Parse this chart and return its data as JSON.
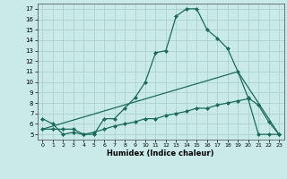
{
  "xlabel": "Humidex (Indice chaleur)",
  "background_color": "#caeaea",
  "grid_color": "#aed4d4",
  "line_color": "#1a6b5a",
  "xlim": [
    -0.5,
    23.5
  ],
  "ylim": [
    4.5,
    17.5
  ],
  "xticks": [
    0,
    1,
    2,
    3,
    4,
    5,
    6,
    7,
    8,
    9,
    10,
    11,
    12,
    13,
    14,
    15,
    16,
    17,
    18,
    19,
    20,
    21,
    22,
    23
  ],
  "yticks": [
    5,
    6,
    7,
    8,
    9,
    10,
    11,
    12,
    13,
    14,
    15,
    16,
    17
  ],
  "series1_x": [
    0,
    1,
    2,
    3,
    4,
    5,
    6,
    7,
    8,
    9,
    10,
    11,
    12,
    13,
    14,
    15,
    16,
    17,
    18,
    19,
    20,
    21,
    22,
    23
  ],
  "series1_y": [
    6.5,
    6.0,
    5.0,
    5.2,
    5.0,
    5.0,
    6.5,
    6.5,
    7.5,
    8.5,
    10.0,
    12.8,
    13.0,
    16.3,
    17.0,
    17.0,
    15.0,
    14.2,
    13.2,
    11.0,
    8.5,
    7.8,
    6.2,
    5.0
  ],
  "series2_x": [
    0,
    1,
    2,
    3,
    4,
    5,
    6,
    7,
    8,
    9,
    10,
    11,
    12,
    13,
    14,
    15,
    16,
    17,
    18,
    19,
    20,
    21,
    22,
    23
  ],
  "series2_y": [
    5.5,
    5.5,
    5.5,
    5.5,
    5.0,
    5.2,
    5.5,
    5.8,
    6.0,
    6.2,
    6.5,
    6.5,
    6.8,
    7.0,
    7.2,
    7.5,
    7.5,
    7.8,
    8.0,
    8.2,
    8.4,
    5.0,
    5.0,
    5.0
  ],
  "series3_x": [
    0,
    19,
    23
  ],
  "series3_y": [
    5.5,
    11.0,
    5.0
  ]
}
